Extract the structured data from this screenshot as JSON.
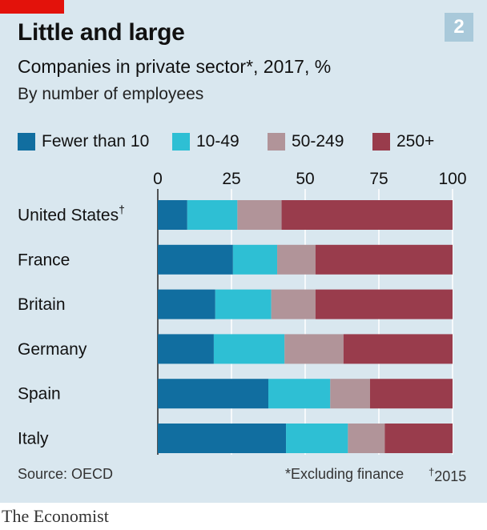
{
  "header": {
    "title": "Little and large",
    "badge": "2",
    "subtitle": "Companies in private sector*, 2017, %",
    "subsubtitle": "By number of employees"
  },
  "footer": {
    "source": "Source: OECD",
    "note1": "*Excluding finance",
    "note2_mark": "†",
    "note2_text": "2015",
    "brand": "The Economist"
  },
  "colors": {
    "panel": "#d9e7ef",
    "accent_red": "#e3120b",
    "fewer_than_10": "#116ea0",
    "s10_49": "#2ebfd4",
    "s50_249": "#b19499",
    "s250_plus": "#993c4c"
  },
  "chart_data": {
    "type": "bar",
    "orientation": "horizontal",
    "stacked": true,
    "categories": [
      "United States",
      "France",
      "Britain",
      "Germany",
      "Spain",
      "Italy"
    ],
    "category_marks": [
      "†",
      "",
      "",
      "",
      "",
      ""
    ],
    "xlim": [
      0,
      100
    ],
    "xticks": [
      0,
      25,
      50,
      75,
      100
    ],
    "legend_position": "top",
    "series": [
      {
        "name": "Fewer than 10",
        "color": "#116ea0",
        "values": [
          10,
          25.5,
          19.5,
          19,
          37.5,
          43.5
        ]
      },
      {
        "name": "10-49",
        "color": "#2ebfd4",
        "values": [
          17,
          15,
          19,
          24,
          21,
          21
        ]
      },
      {
        "name": "50-249",
        "color": "#b19499",
        "values": [
          15,
          13,
          15,
          20,
          13.5,
          12.5
        ]
      },
      {
        "name": "250+",
        "color": "#993c4c",
        "values": [
          58,
          46.5,
          46.5,
          37,
          28,
          23
        ]
      }
    ]
  }
}
